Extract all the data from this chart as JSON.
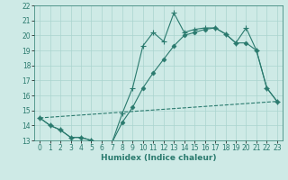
{
  "xlabel": "Humidex (Indice chaleur)",
  "xlim": [
    -0.5,
    23.5
  ],
  "ylim": [
    13,
    22
  ],
  "xticks": [
    0,
    1,
    2,
    3,
    4,
    5,
    6,
    7,
    8,
    9,
    10,
    11,
    12,
    13,
    14,
    15,
    16,
    17,
    18,
    19,
    20,
    21,
    22,
    23
  ],
  "yticks": [
    13,
    14,
    15,
    16,
    17,
    18,
    19,
    20,
    21,
    22
  ],
  "bg_color": "#ceeae6",
  "line_color": "#2a7a6e",
  "grid_color": "#aad4ce",
  "line1_x": [
    0,
    1,
    2,
    3,
    4,
    5,
    6,
    7,
    8,
    9,
    10,
    11,
    12,
    13,
    14,
    15,
    16,
    17,
    18,
    19,
    20,
    21,
    22,
    23
  ],
  "line1_y": [
    14.5,
    14.0,
    13.7,
    13.2,
    13.2,
    13.0,
    12.85,
    12.85,
    14.8,
    16.5,
    19.3,
    20.2,
    19.6,
    21.5,
    20.2,
    20.4,
    20.5,
    20.5,
    20.1,
    19.5,
    20.5,
    19.0,
    16.5,
    15.6
  ],
  "line2_x": [
    0,
    1,
    2,
    3,
    4,
    5,
    6,
    7,
    8,
    9,
    10,
    11,
    12,
    13,
    14,
    15,
    16,
    17,
    18,
    19,
    20,
    21,
    22,
    23
  ],
  "line2_y": [
    14.5,
    14.0,
    13.7,
    13.2,
    13.2,
    13.0,
    12.85,
    12.85,
    14.2,
    15.2,
    16.5,
    17.5,
    18.4,
    19.3,
    20.0,
    20.2,
    20.4,
    20.5,
    20.1,
    19.5,
    19.5,
    19.0,
    16.5,
    15.6
  ],
  "line3_x": [
    0,
    23
  ],
  "line3_y": [
    14.5,
    15.6
  ]
}
